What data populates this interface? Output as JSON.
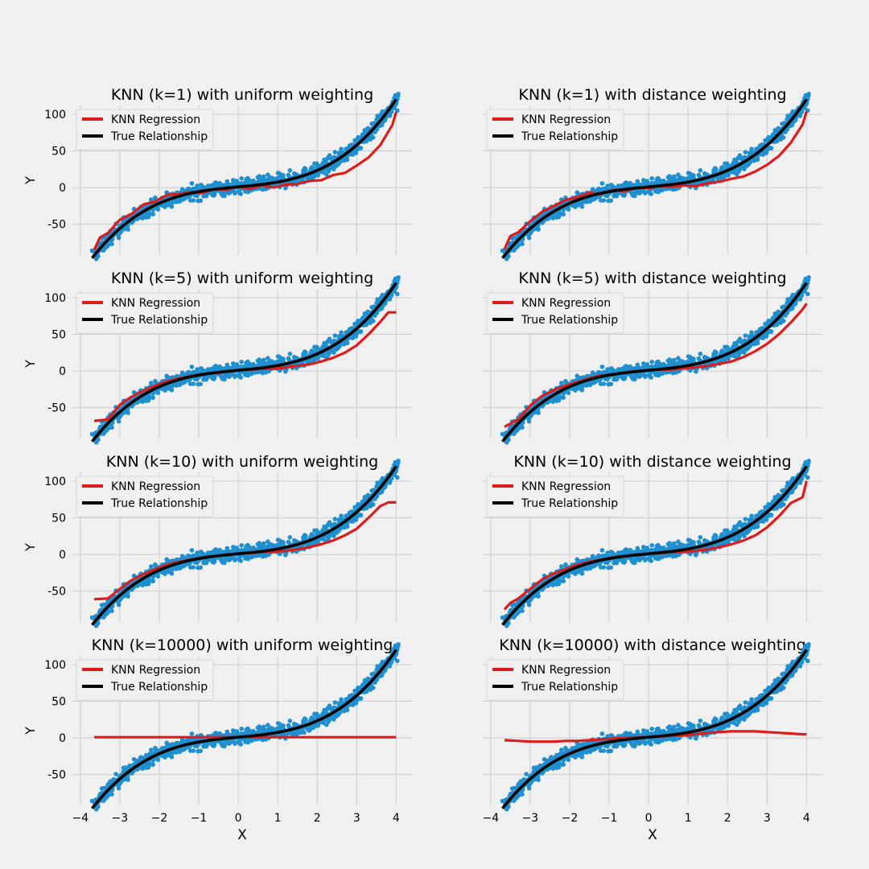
{
  "figure": {
    "background": "#f0f0f0",
    "colors": {
      "scatter": "#1f8fcf",
      "knn": "#dd1c1c",
      "true": "#000000",
      "grid": "#cbcbcb"
    }
  },
  "chart_data": [
    {
      "type": "scatter+line",
      "title": "KNN (k=1) with uniform weighting",
      "k": 1,
      "weighting": "uniform",
      "ylabel": "Y",
      "xlabel": "",
      "xlim": [
        -4.2,
        4.4
      ],
      "ylim": [
        -92,
        112
      ],
      "xticks": [],
      "yticks": [
        -50,
        0,
        50,
        100
      ],
      "legend": [
        "KNN Regression",
        "True Relationship"
      ],
      "legend_loc": "upper left",
      "grid": true,
      "series": [
        {
          "name": "KNN Regression",
          "x": [
            -3.65,
            -3.5,
            -3.3,
            -3.0,
            -2.7,
            -2.4,
            -2.1,
            -1.8,
            -1.5,
            -1.2,
            -0.9,
            -0.6,
            -0.3,
            0,
            0.3,
            0.6,
            0.9,
            1.2,
            1.5,
            1.8,
            2.1,
            2.4,
            2.7,
            3.0,
            3.3,
            3.6,
            3.9,
            4.0
          ],
          "y": [
            -85,
            -68,
            -62,
            -44,
            -36,
            -23,
            -19,
            -10,
            -9,
            -6,
            -7,
            -2,
            -3,
            1,
            -2,
            3,
            0,
            4,
            5,
            9,
            10,
            17,
            20,
            30,
            41,
            58,
            85,
            103
          ]
        },
        {
          "name": "True Relationship",
          "formula": "1.55*x^3 + 5*x + 1"
        }
      ]
    },
    {
      "type": "scatter+line",
      "title": "KNN (k=1) with distance weighting",
      "k": 1,
      "weighting": "distance",
      "ylabel": "",
      "xlabel": "",
      "xlim": [
        -4.2,
        4.4
      ],
      "ylim": [
        -92,
        112
      ],
      "xticks": [],
      "yticks": [],
      "legend": [
        "KNN Regression",
        "True Relationship"
      ],
      "legend_loc": "upper left",
      "grid": true,
      "series": [
        {
          "name": "KNN Regression",
          "x": [
            -3.65,
            -3.5,
            -3.3,
            -3.0,
            -2.7,
            -2.4,
            -2.1,
            -1.8,
            -1.5,
            -1.2,
            -0.9,
            -0.6,
            -0.3,
            0,
            0.3,
            0.6,
            0.9,
            1.2,
            1.5,
            1.8,
            2.1,
            2.4,
            2.7,
            3.0,
            3.3,
            3.6,
            3.9,
            4.0
          ],
          "y": [
            -84,
            -66,
            -61,
            -46,
            -33,
            -25,
            -17,
            -13,
            -7,
            -9,
            -3,
            -5,
            0,
            -1,
            2,
            1,
            3,
            2,
            6,
            8,
            12,
            15,
            22,
            31,
            43,
            61,
            86,
            104
          ]
        },
        {
          "name": "True Relationship",
          "formula": "1.55*x^3 + 5*x + 1"
        }
      ]
    },
    {
      "type": "scatter+line",
      "title": "KNN (k=5) with uniform weighting",
      "k": 5,
      "weighting": "uniform",
      "ylabel": "Y",
      "xlabel": "",
      "xlim": [
        -4.2,
        4.4
      ],
      "ylim": [
        -92,
        112
      ],
      "xticks": [],
      "yticks": [
        -50,
        0,
        50,
        100
      ],
      "legend": [
        "KNN Regression",
        "True Relationship"
      ],
      "legend_loc": "upper left",
      "grid": true,
      "series": [
        {
          "name": "KNN Regression",
          "x": [
            -3.65,
            -3.3,
            -3.0,
            -2.7,
            -2.4,
            -2.1,
            -1.8,
            -1.5,
            -1.2,
            -0.9,
            -0.6,
            -0.3,
            0,
            0.3,
            0.6,
            0.9,
            1.2,
            1.5,
            1.8,
            2.1,
            2.4,
            2.7,
            3.0,
            3.3,
            3.6,
            3.8,
            4.0
          ],
          "y": [
            -68,
            -66,
            -46,
            -35,
            -27,
            -20,
            -14,
            -10,
            -7,
            -4,
            -3,
            -1,
            1,
            2,
            3,
            3,
            5,
            7,
            9,
            13,
            18,
            25,
            35,
            50,
            67,
            80,
            80
          ]
        },
        {
          "name": "True Relationship",
          "formula": "1.55*x^3 + 5*x + 1"
        }
      ]
    },
    {
      "type": "scatter+line",
      "title": "KNN (k=5) with distance weighting",
      "k": 5,
      "weighting": "distance",
      "ylabel": "",
      "xlabel": "",
      "xlim": [
        -4.2,
        4.4
      ],
      "ylim": [
        -92,
        112
      ],
      "xticks": [],
      "yticks": [],
      "legend": [
        "KNN Regression",
        "True Relationship"
      ],
      "legend_loc": "upper left",
      "grid": true,
      "series": [
        {
          "name": "KNN Regression",
          "x": [
            -3.65,
            -3.3,
            -3.0,
            -2.7,
            -2.4,
            -2.1,
            -1.8,
            -1.5,
            -1.2,
            -0.9,
            -0.6,
            -0.3,
            0,
            0.3,
            0.6,
            0.9,
            1.2,
            1.5,
            1.8,
            2.1,
            2.4,
            2.7,
            3.0,
            3.3,
            3.6,
            3.9,
            4.0
          ],
          "y": [
            -76,
            -66,
            -47,
            -34,
            -26,
            -20,
            -15,
            -10,
            -6,
            -5,
            -2,
            0,
            1,
            2,
            2,
            4,
            5,
            7,
            10,
            13,
            19,
            27,
            37,
            50,
            66,
            84,
            92
          ]
        },
        {
          "name": "True Relationship",
          "formula": "1.55*x^3 + 5*x + 1"
        }
      ]
    },
    {
      "type": "scatter+line",
      "title": "KNN (k=10) with uniform weighting",
      "k": 10,
      "weighting": "uniform",
      "ylabel": "Y",
      "xlabel": "",
      "xlim": [
        -4.2,
        4.4
      ],
      "ylim": [
        -92,
        112
      ],
      "xticks": [],
      "yticks": [
        -50,
        0,
        50,
        100
      ],
      "legend": [
        "KNN Regression",
        "True Relationship"
      ],
      "legend_loc": "upper left",
      "grid": true,
      "series": [
        {
          "name": "KNN Regression",
          "x": [
            -3.65,
            -3.3,
            -3.0,
            -2.7,
            -2.4,
            -2.1,
            -1.8,
            -1.5,
            -1.2,
            -0.9,
            -0.6,
            -0.3,
            0,
            0.3,
            0.6,
            0.9,
            1.2,
            1.5,
            1.8,
            2.1,
            2.4,
            2.7,
            3.0,
            3.3,
            3.6,
            3.8,
            4.0
          ],
          "y": [
            -61,
            -60,
            -47,
            -35,
            -27,
            -20,
            -14,
            -10,
            -7,
            -4,
            -2,
            -1,
            1,
            2,
            3,
            4,
            5,
            7,
            10,
            14,
            19,
            26,
            35,
            50,
            66,
            71,
            71
          ]
        },
        {
          "name": "True Relationship",
          "formula": "1.55*x^3 + 5*x + 1"
        }
      ]
    },
    {
      "type": "scatter+line",
      "title": "KNN (k=10) with distance weighting",
      "k": 10,
      "weighting": "distance",
      "ylabel": "",
      "xlabel": "",
      "xlim": [
        -4.2,
        4.4
      ],
      "ylim": [
        -92,
        112
      ],
      "xticks": [],
      "yticks": [],
      "legend": [
        "KNN Regression",
        "True Relationship"
      ],
      "legend_loc": "upper left",
      "grid": true,
      "series": [
        {
          "name": "KNN Regression",
          "x": [
            -3.65,
            -3.5,
            -3.3,
            -3.0,
            -2.7,
            -2.4,
            -2.1,
            -1.8,
            -1.5,
            -1.2,
            -0.9,
            -0.6,
            -0.3,
            0,
            0.3,
            0.6,
            0.9,
            1.2,
            1.5,
            1.8,
            2.1,
            2.4,
            2.7,
            3.0,
            3.3,
            3.6,
            3.9,
            4.0
          ],
          "y": [
            -75,
            -66,
            -60,
            -47,
            -34,
            -26,
            -20,
            -14,
            -10,
            -7,
            -4,
            -2,
            -1,
            1,
            2,
            3,
            4,
            5,
            7,
            10,
            14,
            19,
            26,
            37,
            52,
            70,
            78,
            100
          ]
        },
        {
          "name": "True Relationship",
          "formula": "1.55*x^3 + 5*x + 1"
        }
      ]
    },
    {
      "type": "scatter+line",
      "title": "KNN (k=10000) with uniform weighting",
      "k": 10000,
      "weighting": "uniform",
      "ylabel": "Y",
      "xlabel": "X",
      "xlim": [
        -4.2,
        4.4
      ],
      "ylim": [
        -92,
        112
      ],
      "xticks": [
        -4,
        -3,
        -2,
        -1,
        0,
        1,
        2,
        3,
        4
      ],
      "yticks": [
        -50,
        0,
        50,
        100
      ],
      "legend": [
        "KNN Regression",
        "True Relationship"
      ],
      "legend_loc": "upper left",
      "grid": true,
      "series": [
        {
          "name": "KNN Regression",
          "x": [
            -3.65,
            4.0
          ],
          "y": [
            1,
            1
          ]
        },
        {
          "name": "True Relationship",
          "formula": "1.55*x^3 + 5*x + 1"
        }
      ]
    },
    {
      "type": "scatter+line",
      "title": "KNN (k=10000) with distance weighting",
      "k": 10000,
      "weighting": "distance",
      "ylabel": "",
      "xlabel": "X",
      "xlim": [
        -4.2,
        4.4
      ],
      "ylim": [
        -92,
        112
      ],
      "xticks": [
        -4,
        -3,
        -2,
        -1,
        0,
        1,
        2,
        3,
        4
      ],
      "yticks": [],
      "legend": [
        "KNN Regression",
        "True Relationship"
      ],
      "legend_loc": "upper left",
      "grid": true,
      "series": [
        {
          "name": "KNN Regression",
          "x": [
            -3.65,
            -3.3,
            -3.0,
            -2.7,
            -2.4,
            -2.1,
            -1.8,
            -1.5,
            -1.2,
            -0.9,
            -0.6,
            -0.3,
            0,
            0.3,
            0.6,
            0.9,
            1.2,
            1.5,
            1.8,
            2.1,
            2.4,
            2.7,
            3.0,
            3.3,
            3.6,
            3.9,
            4.0
          ],
          "y": [
            -3,
            -4,
            -5,
            -5,
            -5,
            -4,
            -4,
            -3,
            -2,
            -1,
            0,
            1,
            1,
            2,
            3,
            4,
            5,
            7,
            8,
            9,
            9,
            9,
            8,
            7,
            6,
            5,
            5
          ]
        },
        {
          "name": "True Relationship",
          "formula": "1.55*x^3 + 5*x + 1"
        }
      ]
    }
  ]
}
